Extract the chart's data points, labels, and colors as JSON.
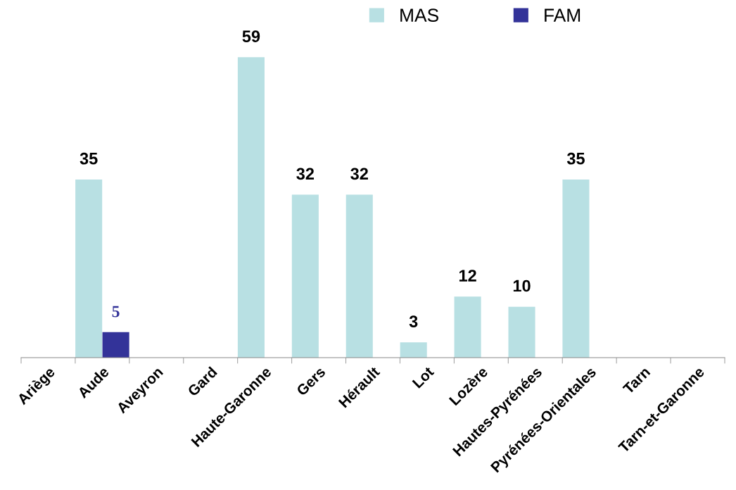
{
  "chart_data": {
    "type": "bar",
    "categories": [
      "Ariège",
      "Aude",
      "Aveyron",
      "Gard",
      "Haute-Garonne",
      "Gers",
      "Hérault",
      "Lot",
      "Lozère",
      "Hautes-Pyrénées",
      "Pyrénées-Orientales",
      "Tarn",
      "Tarn-et-Garonne"
    ],
    "series": [
      {
        "name": "MAS",
        "color": "#b8e0e3",
        "values": [
          null,
          35,
          null,
          null,
          59,
          32,
          32,
          3,
          12,
          10,
          35,
          null,
          null
        ]
      },
      {
        "name": "FAM",
        "color": "#333399",
        "values": [
          null,
          5,
          null,
          null,
          null,
          null,
          null,
          null,
          null,
          null,
          null,
          null,
          null
        ]
      }
    ],
    "data_labels": true,
    "legend": "top right",
    "grid": false
  }
}
